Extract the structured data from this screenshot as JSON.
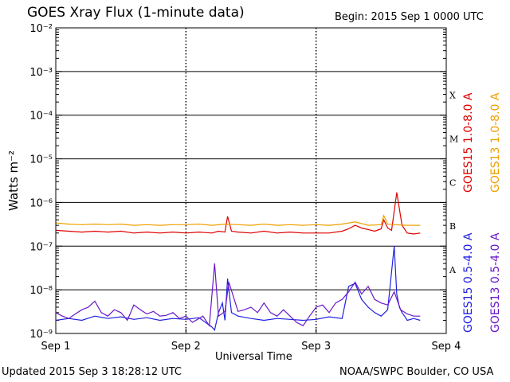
{
  "header": {
    "title": "GOES Xray Flux (1-minute data)",
    "begin": "Begin:  2015 Sep 1 0000 UTC"
  },
  "footer": {
    "updated": "Updated 2015 Sep  3 18:28:12 UTC",
    "credit": "NOAA/SWPC Boulder, CO USA"
  },
  "chart_data": {
    "type": "line",
    "title": "GOES Xray Flux (1-minute data)",
    "xlabel": "Universal Time",
    "ylabel": "Watts m⁻²",
    "y_scale": "log",
    "ylim": [
      1e-09,
      0.01
    ],
    "x_unit": "days since 2015 Sep 1 0000 UTC",
    "xlim": [
      0,
      3
    ],
    "x_ticks": [
      "Sep 1",
      "Sep 2",
      "Sep 3",
      "Sep 4"
    ],
    "y_ticks": [
      "10⁻⁹",
      "10⁻⁸",
      "10⁻⁷",
      "10⁻⁶",
      "10⁻⁵",
      "10⁻⁴",
      "10⁻³",
      "10⁻²"
    ],
    "flare_classes": [
      {
        "label": "X",
        "y": 0.0003
      },
      {
        "label": "M",
        "y": 3e-05
      },
      {
        "label": "C",
        "y": 3e-06
      },
      {
        "label": "B",
        "y": 3e-07
      },
      {
        "label": "A",
        "y": 3e-08
      }
    ],
    "grid": true,
    "legend_placement": "right, rotated",
    "series": [
      {
        "name": "GOES15 1.0-8.0 A",
        "color": "#e00000",
        "x": [
          0.0,
          0.1,
          0.2,
          0.3,
          0.4,
          0.5,
          0.6,
          0.7,
          0.8,
          0.9,
          1.0,
          1.1,
          1.2,
          1.25,
          1.3,
          1.32,
          1.35,
          1.4,
          1.5,
          1.6,
          1.7,
          1.8,
          1.9,
          2.0,
          2.1,
          2.2,
          2.25,
          2.3,
          2.35,
          2.4,
          2.45,
          2.5,
          2.52,
          2.55,
          2.58,
          2.62,
          2.66,
          2.7,
          2.75,
          2.8
        ],
        "y": [
          2.3e-07,
          2.2e-07,
          2.1e-07,
          2.2e-07,
          2.1e-07,
          2.2e-07,
          2e-07,
          2.1e-07,
          2e-07,
          2.1e-07,
          2e-07,
          2.1e-07,
          2e-07,
          2.2e-07,
          2.1e-07,
          4.8e-07,
          2.2e-07,
          2.1e-07,
          2e-07,
          2.2e-07,
          2e-07,
          2.1e-07,
          2e-07,
          2e-07,
          2e-07,
          2.2e-07,
          2.5e-07,
          3e-07,
          2.6e-07,
          2.4e-07,
          2.2e-07,
          2.5e-07,
          4e-07,
          2.6e-07,
          2.3e-07,
          1.7e-06,
          3e-07,
          2e-07,
          1.9e-07,
          2e-07
        ]
      },
      {
        "name": "GOES13 1.0-8.0 A",
        "color": "#f0a000",
        "x": [
          0.0,
          0.1,
          0.2,
          0.3,
          0.4,
          0.5,
          0.6,
          0.7,
          0.8,
          0.9,
          1.0,
          1.1,
          1.2,
          1.3,
          1.4,
          1.5,
          1.6,
          1.7,
          1.8,
          1.9,
          2.0,
          2.1,
          2.2,
          2.3,
          2.4,
          2.5,
          2.52,
          2.55,
          2.6,
          2.7,
          2.8
        ],
        "y": [
          3.4e-07,
          3.2e-07,
          3.1e-07,
          3.2e-07,
          3.1e-07,
          3.2e-07,
          3e-07,
          3.1e-07,
          3e-07,
          3.1e-07,
          3.1e-07,
          3.2e-07,
          3e-07,
          3.2e-07,
          3.1e-07,
          3e-07,
          3.2e-07,
          3e-07,
          3.1e-07,
          3e-07,
          3.1e-07,
          3e-07,
          3.2e-07,
          3.6e-07,
          3e-07,
          3.1e-07,
          5e-07,
          3.2e-07,
          3.1e-07,
          3e-07,
          3e-07
        ]
      },
      {
        "name": "GOES15 0.5-4.0 A",
        "color": "#2020e0",
        "x": [
          0.0,
          0.1,
          0.2,
          0.3,
          0.4,
          0.5,
          0.6,
          0.7,
          0.8,
          0.9,
          1.0,
          1.1,
          1.2,
          1.22,
          1.25,
          1.28,
          1.3,
          1.32,
          1.35,
          1.4,
          1.5,
          1.6,
          1.7,
          1.8,
          1.9,
          2.0,
          2.1,
          2.2,
          2.25,
          2.3,
          2.35,
          2.4,
          2.45,
          2.5,
          2.55,
          2.6,
          2.62,
          2.64,
          2.66,
          2.68,
          2.7,
          2.75,
          2.8
        ],
        "y": [
          2e-09,
          2.2e-09,
          2e-09,
          2.5e-09,
          2.2e-09,
          2.4e-09,
          2.1e-09,
          2.3e-09,
          2e-09,
          2.2e-09,
          2.1e-09,
          2.3e-09,
          1.4e-09,
          1.2e-09,
          3e-09,
          5e-09,
          2e-09,
          1.8e-08,
          3e-09,
          2.5e-09,
          2.2e-09,
          2e-09,
          2.2e-09,
          2.1e-09,
          2e-09,
          2.1e-09,
          2.4e-09,
          2.2e-09,
          1.2e-08,
          1.4e-08,
          6e-09,
          4e-09,
          3e-09,
          2.5e-09,
          3.5e-09,
          1e-07,
          8e-09,
          4e-09,
          3e-09,
          2.5e-09,
          2e-09,
          2.2e-09,
          2e-09
        ]
      },
      {
        "name": "GOES13 0.5-4.0 A",
        "color": "#6a18c8",
        "x": [
          0.0,
          0.05,
          0.1,
          0.15,
          0.2,
          0.25,
          0.3,
          0.35,
          0.4,
          0.45,
          0.5,
          0.55,
          0.6,
          0.65,
          0.7,
          0.75,
          0.8,
          0.85,
          0.9,
          0.95,
          1.0,
          1.05,
          1.1,
          1.13,
          1.18,
          1.22,
          1.25,
          1.3,
          1.33,
          1.4,
          1.45,
          1.5,
          1.55,
          1.6,
          1.65,
          1.7,
          1.75,
          1.8,
          1.85,
          1.9,
          1.95,
          2.0,
          2.05,
          2.1,
          2.15,
          2.2,
          2.25,
          2.3,
          2.35,
          2.4,
          2.45,
          2.5,
          2.55,
          2.6,
          2.65,
          2.7,
          2.75,
          2.8
        ],
        "y": [
          3e-09,
          2.5e-09,
          2.2e-09,
          2.8e-09,
          3.5e-09,
          4e-09,
          5.5e-09,
          3e-09,
          2.5e-09,
          3.5e-09,
          3e-09,
          2e-09,
          4.5e-09,
          3.5e-09,
          2.8e-09,
          3.2e-09,
          2.5e-09,
          2.6e-09,
          3e-09,
          2.2e-09,
          2.5e-09,
          1.8e-09,
          2.2e-09,
          2.5e-09,
          1.5e-09,
          4e-08,
          2.5e-09,
          3.2e-09,
          1.5e-08,
          3.2e-09,
          3.5e-09,
          4e-09,
          3e-09,
          5e-09,
          3e-09,
          2.5e-09,
          3.5e-09,
          2.5e-09,
          1.8e-09,
          1.5e-09,
          2.5e-09,
          4e-09,
          4.5e-09,
          3e-09,
          5e-09,
          6e-09,
          9e-09,
          1.5e-08,
          8e-09,
          1.2e-08,
          6e-09,
          5e-09,
          4.5e-09,
          9e-09,
          3.5e-09,
          2.8e-09,
          2.5e-09,
          2.5e-09
        ]
      }
    ]
  }
}
